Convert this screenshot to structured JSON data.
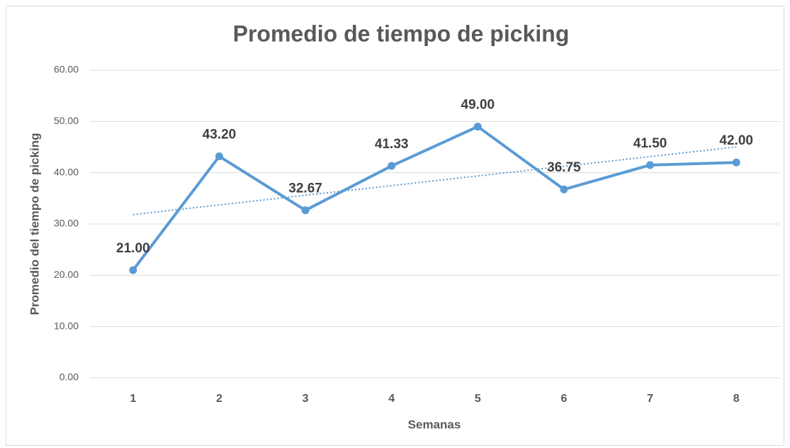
{
  "chart_data": {
    "type": "line",
    "title": "Promedio de tiempo de picking",
    "x_label": "Semanas",
    "y_label": "Promedio del tiempo de picking",
    "categories": [
      "1",
      "2",
      "3",
      "4",
      "5",
      "6",
      "7",
      "8"
    ],
    "series": [
      {
        "name": "Promedio de tiempo de picking",
        "color": "#5b9bd5",
        "values": [
          21.0,
          43.2,
          32.67,
          41.33,
          49.0,
          36.75,
          41.5,
          42.0
        ],
        "value_labels": [
          "21.00",
          "43.20",
          "32.67",
          "41.33",
          "49.00",
          "36.75",
          "41.50",
          "42.00"
        ]
      }
    ],
    "trendline": "linear",
    "ylim": [
      0,
      60
    ],
    "yticks": [
      {
        "value": 0,
        "label": "0.00"
      },
      {
        "value": 10,
        "label": "10.00"
      },
      {
        "value": 20,
        "label": "20.00"
      },
      {
        "value": 30,
        "label": "30.00"
      },
      {
        "value": 40,
        "label": "40.00"
      },
      {
        "value": 50,
        "label": "50.00"
      },
      {
        "value": 60,
        "label": "60.00"
      }
    ],
    "grid": true
  }
}
